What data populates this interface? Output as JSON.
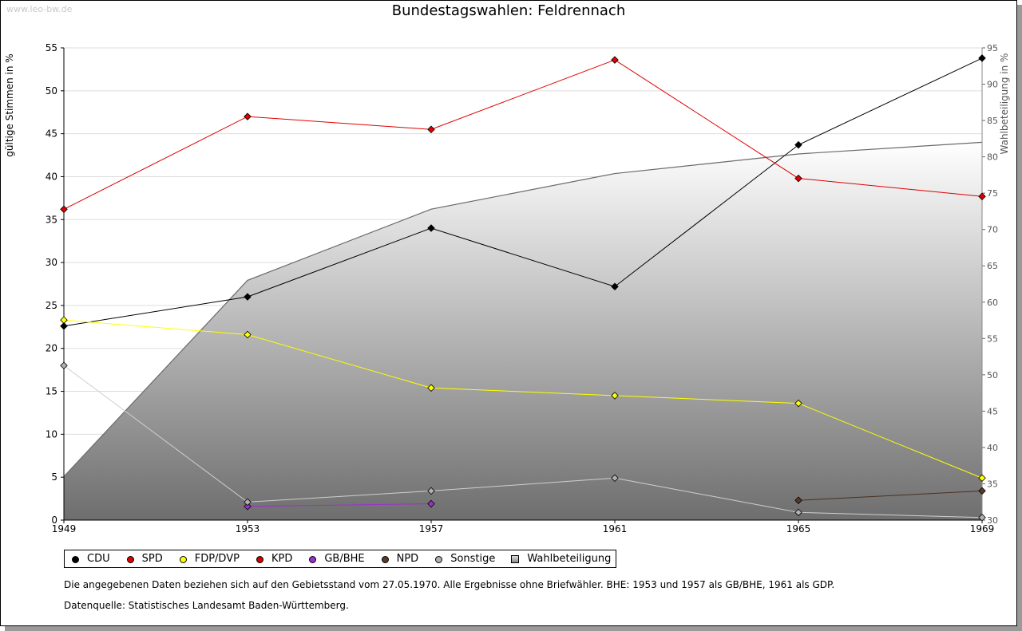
{
  "watermark": "www.leo-bw.de",
  "title": "Bundestagswahlen: Feldrennach",
  "footnote": "Die angegebenen Daten beziehen sich auf den Gebietsstand vom 27.05.1970. Alle Ergebnisse ohne Briefwähler. BHE: 1953 und 1957 als GB/BHE, 1961 als GDP.",
  "source": "Datenquelle: Statistisches Landesamt Baden-Württemberg.",
  "chart_data": {
    "type": "line",
    "title": "Bundestagswahlen: Feldrennach",
    "ylabel": "gültige Stimmen in %",
    "y2label": "Wahlbeteiligung in %",
    "x": [
      "1949",
      "1953",
      "1957",
      "1961",
      "1965",
      "1969"
    ],
    "ylim": [
      0,
      55
    ],
    "yticks": [
      0,
      5,
      10,
      15,
      20,
      25,
      30,
      35,
      40,
      45,
      50,
      55
    ],
    "y2lim": [
      30,
      95
    ],
    "y2ticks": [
      30,
      35,
      40,
      45,
      50,
      55,
      60,
      65,
      70,
      75,
      80,
      85,
      90,
      95
    ],
    "grid": true,
    "legend_position": "bottom",
    "series": [
      {
        "name": "CDU",
        "color": "#000000",
        "values": [
          22.6,
          26.0,
          34.0,
          27.2,
          43.7,
          53.8
        ]
      },
      {
        "name": "SPD",
        "color": "#e00000",
        "values": [
          36.2,
          47.0,
          45.5,
          53.6,
          39.8,
          37.7
        ]
      },
      {
        "name": "FDP/DVP",
        "color": "#ffff00",
        "values": [
          23.3,
          21.6,
          15.4,
          14.5,
          13.6,
          4.9
        ]
      },
      {
        "name": "KPD",
        "color": "#d00000",
        "values": [
          null,
          null,
          null,
          null,
          null,
          null
        ]
      },
      {
        "name": "GB/BHE",
        "color": "#9b30d0",
        "values": [
          null,
          1.6,
          1.9,
          null,
          null,
          null
        ]
      },
      {
        "name": "NPD",
        "color": "#5a3a2a",
        "values": [
          null,
          null,
          null,
          null,
          2.3,
          3.4
        ]
      },
      {
        "name": "Sonstige",
        "color": "#b0b0b0",
        "values": [
          18.0,
          2.1,
          3.4,
          4.9,
          0.9,
          0.3
        ]
      }
    ],
    "turnout": {
      "name": "Wahlbeteiligung",
      "axis": "right",
      "type": "area",
      "values": [
        36.0,
        63.0,
        72.8,
        77.7,
        80.4,
        82.0
      ]
    }
  }
}
